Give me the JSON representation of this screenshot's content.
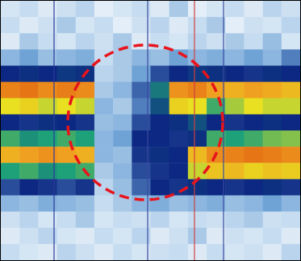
{
  "chart_data": {
    "type": "heatmap",
    "tick_labels": false,
    "zlim": [
      0,
      1
    ],
    "cells": [
      [
        0.15,
        0.2,
        0.12,
        0.18,
        0.22,
        0.1,
        0.15,
        0.2,
        0.12,
        0.25,
        0.1,
        0.15,
        0.2,
        0.12,
        0.22,
        0.18
      ],
      [
        0.2,
        0.12,
        0.18,
        0.25,
        0.15,
        0.2,
        0.1,
        0.18,
        0.22,
        0.12,
        0.2,
        0.25,
        0.1,
        0.18,
        0.15,
        0.22
      ],
      [
        0.12,
        0.25,
        0.2,
        0.15,
        0.22,
        0.18,
        0.25,
        0.12,
        0.2,
        0.15,
        0.22,
        0.18,
        0.25,
        0.2,
        0.28,
        0.15
      ],
      [
        0.3,
        0.35,
        0.28,
        0.3,
        0.32,
        0.2,
        0.25,
        0.3,
        0.28,
        0.35,
        0.3,
        0.32,
        0.3,
        0.35,
        0.3,
        0.38
      ],
      [
        0.45,
        0.46,
        0.45,
        0.47,
        0.46,
        0.22,
        0.25,
        0.35,
        0.42,
        0.45,
        0.47,
        0.46,
        0.45,
        0.44,
        0.46,
        0.45
      ],
      [
        0.92,
        0.95,
        0.9,
        0.93,
        0.9,
        0.25,
        0.3,
        0.4,
        0.55,
        0.88,
        0.92,
        0.85,
        0.82,
        0.85,
        0.83,
        0.8
      ],
      [
        0.72,
        0.75,
        0.7,
        0.72,
        0.7,
        0.3,
        0.25,
        0.38,
        0.5,
        0.75,
        0.72,
        0.62,
        0.68,
        0.72,
        0.7,
        0.7
      ],
      [
        0.45,
        0.44,
        0.46,
        0.45,
        0.44,
        0.28,
        0.3,
        0.42,
        0.45,
        0.46,
        0.5,
        0.45,
        0.44,
        0.45,
        0.46,
        0.45
      ],
      [
        0.62,
        0.58,
        0.6,
        0.62,
        0.6,
        0.3,
        0.35,
        0.45,
        0.45,
        0.44,
        0.46,
        0.62,
        0.6,
        0.62,
        0.65,
        0.66
      ],
      [
        0.82,
        0.85,
        0.88,
        0.85,
        0.82,
        0.3,
        0.28,
        0.44,
        0.46,
        0.45,
        0.8,
        0.9,
        0.92,
        0.95,
        0.93,
        0.9
      ],
      [
        0.6,
        0.62,
        0.58,
        0.6,
        0.62,
        0.25,
        0.3,
        0.42,
        0.44,
        0.45,
        0.7,
        0.78,
        0.8,
        0.75,
        0.78,
        0.76
      ],
      [
        0.42,
        0.45,
        0.44,
        0.42,
        0.44,
        0.22,
        0.28,
        0.4,
        0.45,
        0.44,
        0.46,
        0.45,
        0.44,
        0.45,
        0.46,
        0.44
      ],
      [
        0.3,
        0.28,
        0.32,
        0.3,
        0.28,
        0.2,
        0.25,
        0.3,
        0.32,
        0.28,
        0.3,
        0.32,
        0.28,
        0.3,
        0.35,
        0.3
      ],
      [
        0.18,
        0.22,
        0.15,
        0.2,
        0.25,
        0.15,
        0.2,
        0.18,
        0.22,
        0.15,
        0.2,
        0.18,
        0.22,
        0.25,
        0.18,
        0.2
      ],
      [
        0.12,
        0.18,
        0.22,
        0.15,
        0.12,
        0.2,
        0.15,
        0.22,
        0.12,
        0.18,
        0.25,
        0.12,
        0.18,
        0.15,
        0.2,
        0.12
      ],
      [
        0.2,
        0.15,
        0.12,
        0.22,
        0.18,
        0.12,
        0.2,
        0.15,
        0.18,
        0.2,
        0.12,
        0.2,
        0.15,
        0.18,
        0.12,
        0.22
      ]
    ]
  }
}
